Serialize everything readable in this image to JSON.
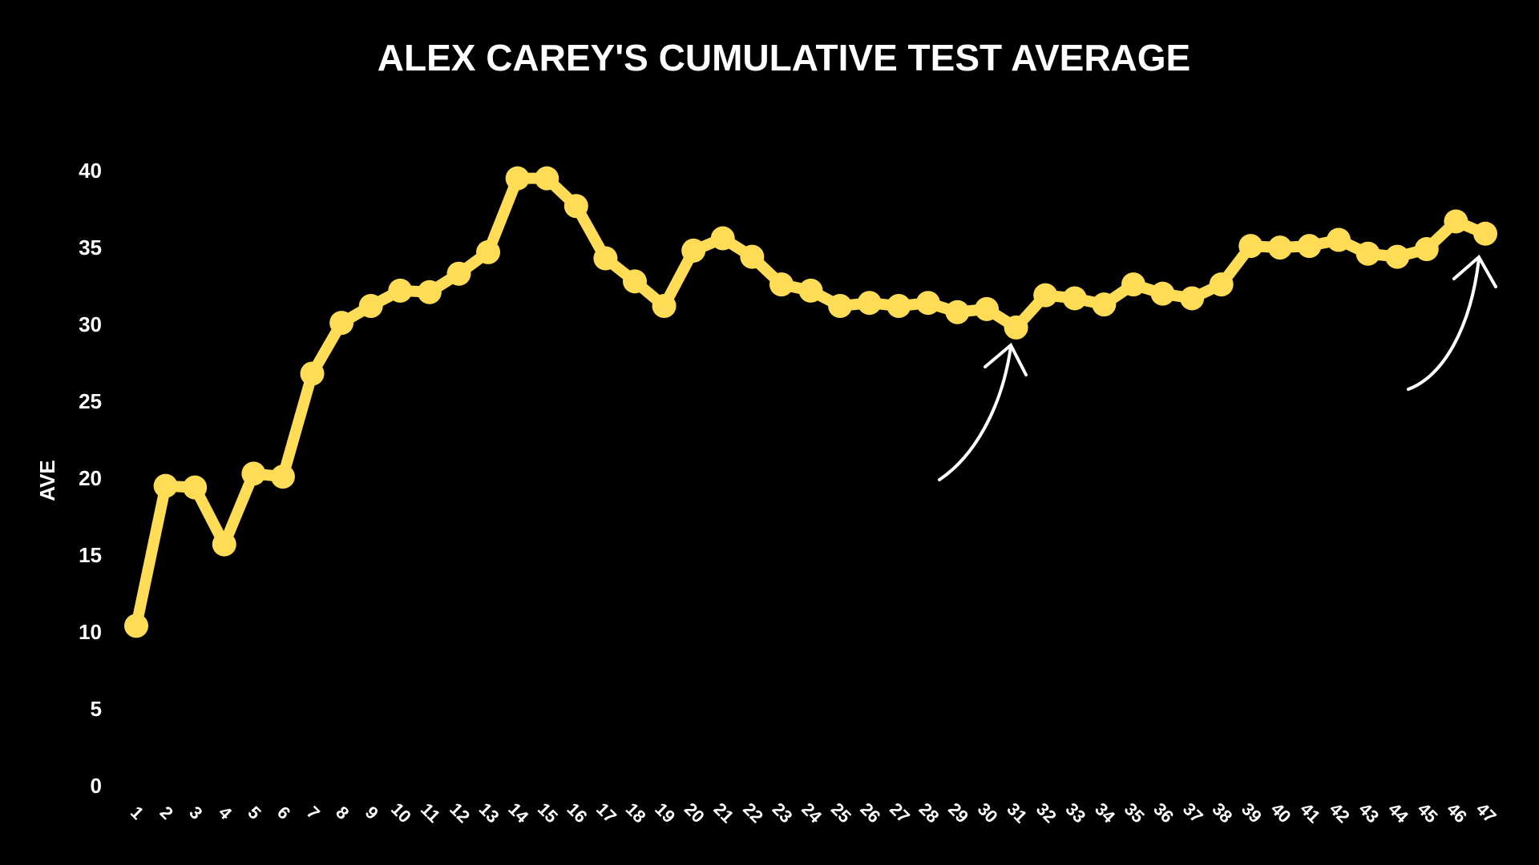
{
  "chart_data": {
    "type": "line",
    "title": "ALEX CAREY'S CUMULATIVE TEST AVERAGE",
    "y_label": "AVE",
    "categories": [
      "1",
      "2",
      "3",
      "4",
      "5",
      "6",
      "7",
      "8",
      "9",
      "10",
      "11",
      "12",
      "13",
      "14",
      "15",
      "16",
      "17",
      "18",
      "19",
      "20",
      "21",
      "22",
      "23",
      "24",
      "25",
      "26",
      "27",
      "28",
      "29",
      "30",
      "31",
      "32",
      "33",
      "34",
      "35",
      "36",
      "37",
      "38",
      "39",
      "40",
      "41",
      "42",
      "43",
      "44",
      "45",
      "46",
      "47"
    ],
    "series": [
      {
        "name": "AVE",
        "color": "#fedc56",
        "values": [
          10.5,
          19.6,
          19.5,
          15.8,
          20.4,
          20.2,
          26.9,
          30.2,
          31.3,
          32.3,
          32.2,
          33.4,
          34.8,
          39.6,
          39.6,
          37.8,
          34.4,
          32.9,
          31.3,
          34.9,
          35.7,
          34.5,
          32.7,
          32.3,
          31.3,
          31.5,
          31.3,
          31.5,
          30.9,
          31.1,
          29.9,
          32.0,
          31.8,
          31.4,
          32.7,
          32.1,
          31.8,
          32.7,
          35.2,
          35.1,
          35.2,
          35.6,
          34.7,
          34.5,
          35.0,
          36.8,
          36.0
        ]
      }
    ],
    "ylim": [
      0,
      40
    ],
    "yticks": [
      0,
      5,
      10,
      15,
      20,
      25,
      30,
      35,
      40
    ],
    "grid": false
  }
}
